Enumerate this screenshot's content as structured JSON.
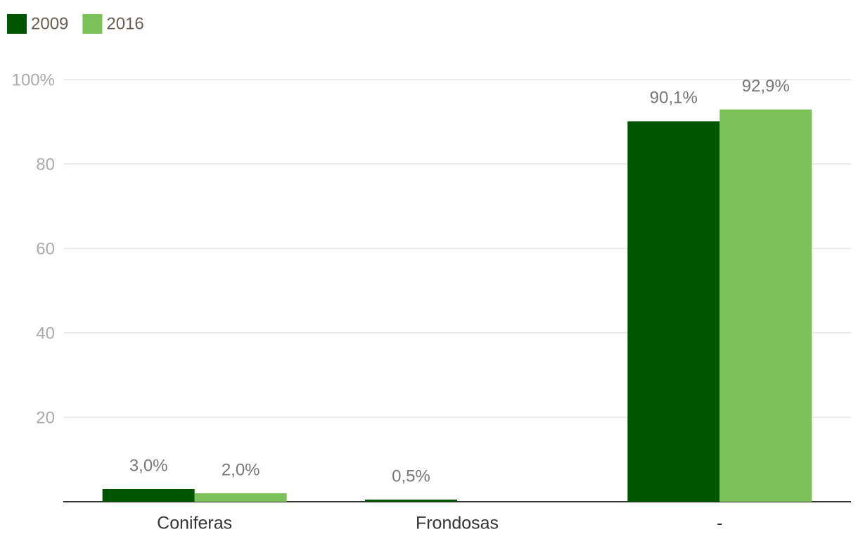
{
  "chart_data": {
    "type": "bar",
    "categories": [
      "Coniferas",
      "Frondosas",
      "-"
    ],
    "series": [
      {
        "name": "2009",
        "color": "#005500",
        "values": [
          3.0,
          0.5,
          90.1
        ],
        "value_labels": [
          "3,0%",
          "0,5%",
          "90,1%"
        ]
      },
      {
        "name": "2016",
        "color": "#7ac158",
        "values": [
          2.0,
          null,
          92.9
        ],
        "value_labels": [
          "2,0%",
          null,
          "92,9%"
        ]
      }
    ],
    "ylim": [
      0,
      100
    ],
    "yticks": [
      20,
      40,
      60,
      80,
      {
        "value": 100,
        "label": "100%"
      }
    ],
    "grid": true
  }
}
